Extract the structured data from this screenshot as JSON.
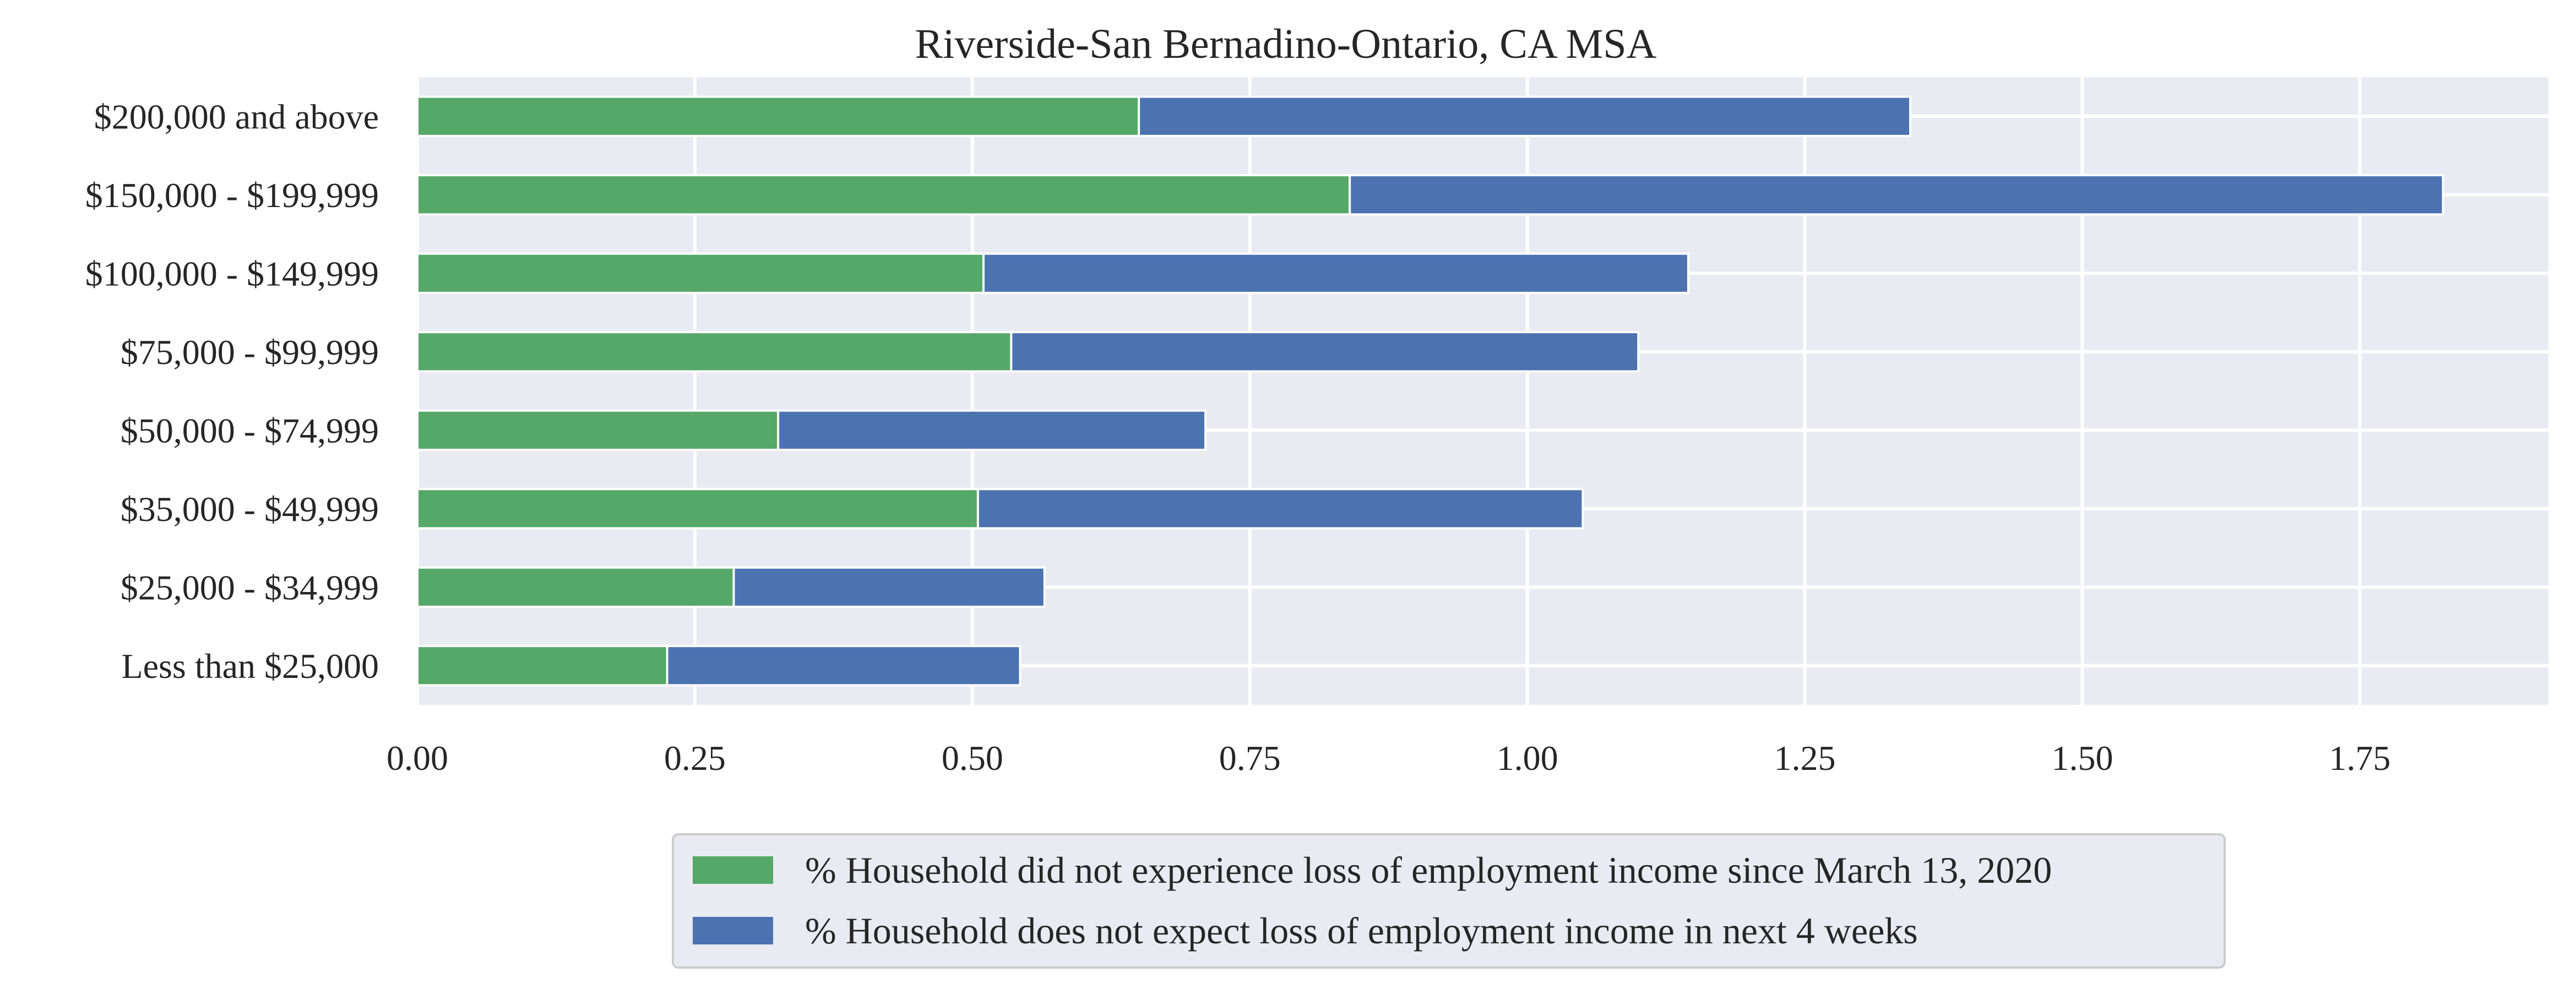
{
  "chart_data": {
    "type": "bar",
    "orientation": "horizontal",
    "stacked": true,
    "title": "Riverside-San Bernadino-Ontario, CA MSA",
    "xlabel": "",
    "ylabel": "",
    "categories": [
      "$200,000 and above",
      "$150,000 - $199,999",
      "$100,000 - $149,999",
      "$75,000 - $99,999",
      "$50,000 - $74,999",
      "$35,000 - $49,999",
      "$25,000 - $34,999",
      "Less than $25,000"
    ],
    "series": [
      {
        "name": "% Household did not experience loss of employment income since March 13, 2020",
        "color": "#55a868",
        "values": [
          0.65,
          0.84,
          0.51,
          0.535,
          0.325,
          0.505,
          0.285,
          0.225
        ]
      },
      {
        "name": "% Household does not expect loss of employment income in next 4 weeks",
        "color": "#4c72b0",
        "values": [
          0.695,
          0.985,
          0.635,
          0.565,
          0.385,
          0.545,
          0.28,
          0.318
        ]
      }
    ],
    "xlim": [
      0,
      1.92
    ],
    "xticks": [
      "0.00",
      "0.25",
      "0.50",
      "0.75",
      "1.00",
      "1.25",
      "1.50",
      "1.75"
    ],
    "grid": true,
    "legend_position": "bottom-center",
    "background": "#eaeaf2"
  }
}
